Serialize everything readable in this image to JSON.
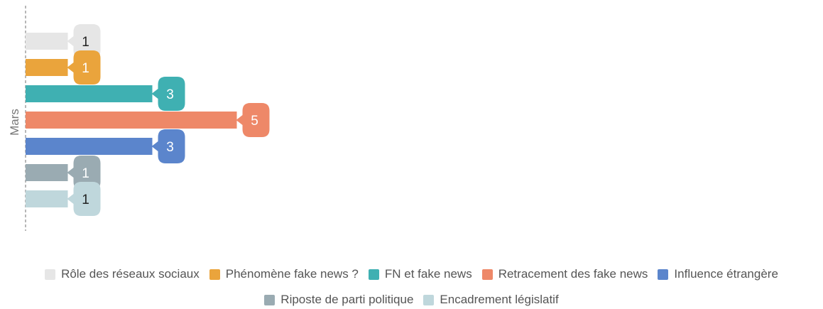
{
  "chart_data": {
    "type": "bar",
    "orientation": "horizontal",
    "categories": [
      "Mars"
    ],
    "series": [
      {
        "name": "Rôle des réseaux sociaux",
        "values": [
          1
        ],
        "color": "#e6e6e6",
        "label_color": "#222222"
      },
      {
        "name": "Phénomène fake news ?",
        "values": [
          1
        ],
        "color": "#eaa43c",
        "label_color": "#ffffff"
      },
      {
        "name": "FN et fake news",
        "values": [
          3
        ],
        "color": "#3fb0b2",
        "label_color": "#ffffff"
      },
      {
        "name": "Retracement des fake news",
        "values": [
          5
        ],
        "color": "#ee8868",
        "label_color": "#ffffff"
      },
      {
        "name": "Influence étrangère",
        "values": [
          3
        ],
        "color": "#5b85cc",
        "label_color": "#ffffff"
      },
      {
        "name": "Riposte de parti politique",
        "values": [
          1
        ],
        "color": "#9aabb2",
        "label_color": "#ffffff"
      },
      {
        "name": "Encadrement législatif",
        "values": [
          1
        ],
        "color": "#bfd7dc",
        "label_color": "#222222"
      }
    ],
    "xlim": [
      0,
      5
    ],
    "grid": false,
    "data_labels": true,
    "legend_position": "bottom"
  },
  "legend": {
    "row1": [
      {
        "label": "Rôle des réseaux sociaux",
        "color": "#e6e6e6"
      },
      {
        "label": "Phénomène fake news ?",
        "color": "#eaa43c"
      },
      {
        "label": "FN et fake news",
        "color": "#3fb0b2"
      },
      {
        "label": "Retracement des fake news",
        "color": "#ee8868"
      },
      {
        "label": "Influence étrangère",
        "color": "#5b85cc"
      }
    ],
    "row2": [
      {
        "label": "Riposte de parti politique",
        "color": "#9aabb2"
      },
      {
        "label": "Encadrement législatif",
        "color": "#bfd7dc"
      }
    ]
  }
}
